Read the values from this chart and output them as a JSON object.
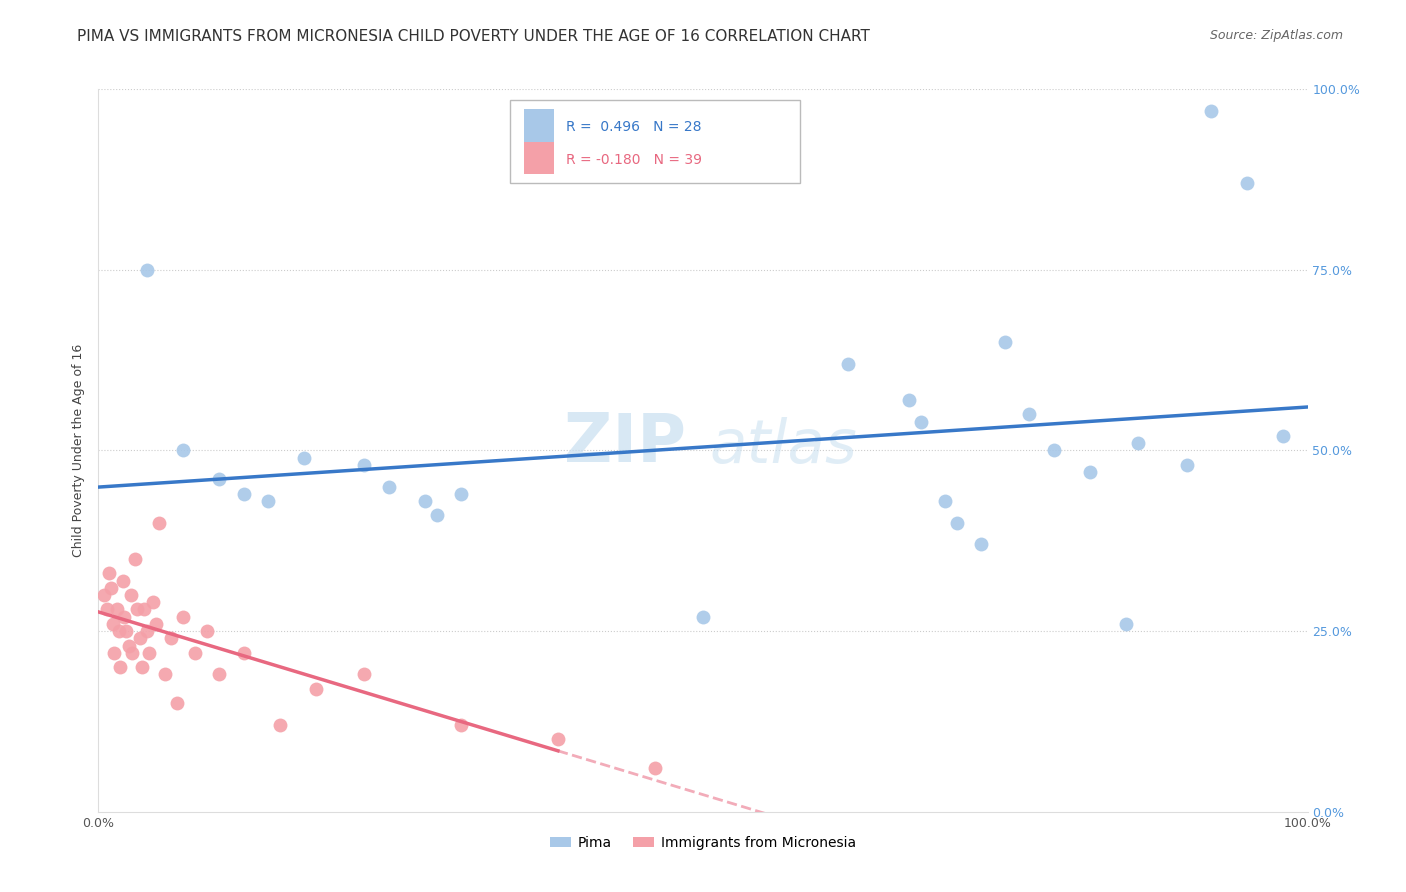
{
  "title": "PIMA VS IMMIGRANTS FROM MICRONESIA CHILD POVERTY UNDER THE AGE OF 16 CORRELATION CHART",
  "source": "Source: ZipAtlas.com",
  "ylabel": "Child Poverty Under the Age of 16",
  "legend_pima": "Pima",
  "legend_micro": "Immigrants from Micronesia",
  "r_pima": 0.496,
  "n_pima": 28,
  "r_micro": -0.18,
  "n_micro": 39,
  "pima_color": "#a8c8e8",
  "micro_color": "#f4a0a8",
  "pima_line_color": "#3878c8",
  "micro_line_color": "#e86880",
  "background_color": "#ffffff",
  "grid_color": "#cccccc",
  "xlim": [
    0.0,
    1.0
  ],
  "ylim": [
    0.0,
    1.0
  ],
  "pima_x": [
    0.04,
    0.62,
    0.67,
    0.68,
    0.7,
    0.71,
    0.73,
    0.75,
    0.77,
    0.79,
    0.82,
    0.85,
    0.86,
    0.9,
    0.07,
    0.1,
    0.12,
    0.14,
    0.17,
    0.5,
    0.22,
    0.24,
    0.27,
    0.28,
    0.3,
    0.92,
    0.95,
    0.98
  ],
  "pima_y": [
    0.75,
    0.62,
    0.57,
    0.54,
    0.43,
    0.4,
    0.37,
    0.65,
    0.55,
    0.5,
    0.47,
    0.26,
    0.51,
    0.48,
    0.5,
    0.46,
    0.44,
    0.43,
    0.49,
    0.27,
    0.48,
    0.45,
    0.43,
    0.41,
    0.44,
    0.97,
    0.87,
    0.52
  ],
  "micro_x": [
    0.005,
    0.007,
    0.009,
    0.01,
    0.012,
    0.013,
    0.015,
    0.017,
    0.018,
    0.02,
    0.021,
    0.023,
    0.025,
    0.027,
    0.028,
    0.03,
    0.032,
    0.034,
    0.036,
    0.038,
    0.04,
    0.042,
    0.045,
    0.048,
    0.05,
    0.055,
    0.06,
    0.065,
    0.07,
    0.08,
    0.09,
    0.1,
    0.12,
    0.15,
    0.18,
    0.22,
    0.3,
    0.38,
    0.46
  ],
  "micro_y": [
    0.3,
    0.28,
    0.33,
    0.31,
    0.26,
    0.22,
    0.28,
    0.25,
    0.2,
    0.32,
    0.27,
    0.25,
    0.23,
    0.3,
    0.22,
    0.35,
    0.28,
    0.24,
    0.2,
    0.28,
    0.25,
    0.22,
    0.29,
    0.26,
    0.4,
    0.19,
    0.24,
    0.15,
    0.27,
    0.22,
    0.25,
    0.19,
    0.22,
    0.12,
    0.17,
    0.19,
    0.12,
    0.1,
    0.06
  ],
  "watermark_zip": "ZIP",
  "watermark_atlas": "atlas",
  "title_fontsize": 11,
  "label_fontsize": 9,
  "tick_fontsize": 9
}
